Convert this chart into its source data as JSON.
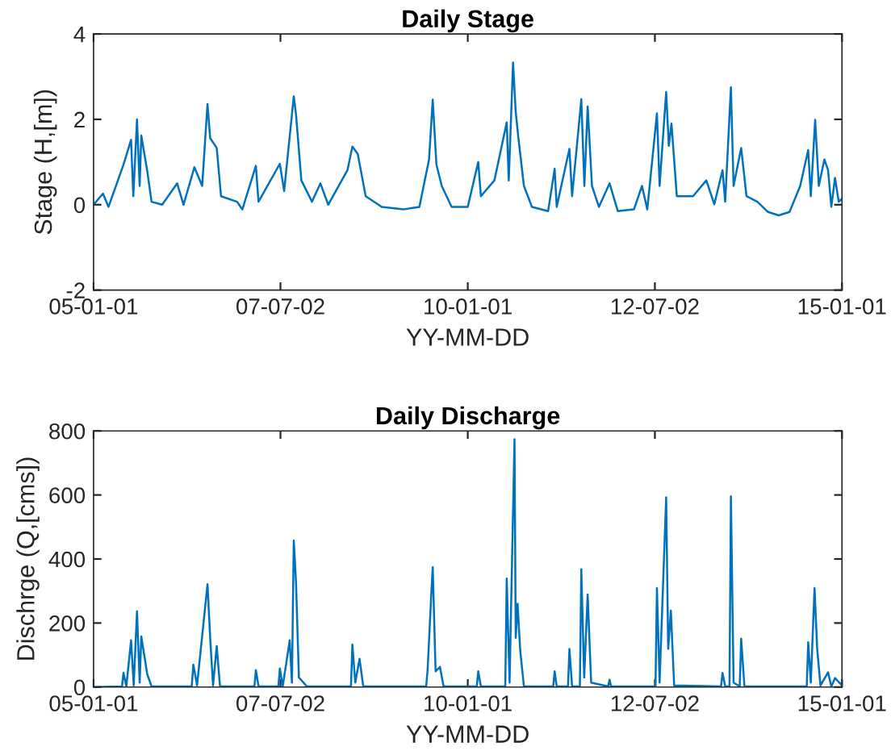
{
  "chart_data": [
    {
      "type": "line",
      "title": "Daily Stage",
      "xlabel": "YY-MM-DD",
      "ylabel": "Stage (H,[m])",
      "xlim": [
        "2005-01-01",
        "2015-01-01"
      ],
      "xticks": [
        {
          "value": "2005-01-01",
          "label": "05-01-01"
        },
        {
          "value": "2007-07-02",
          "label": "07-07-02"
        },
        {
          "value": "2010-01-01",
          "label": "10-01-01"
        },
        {
          "value": "2012-07-02",
          "label": "12-07-02"
        },
        {
          "value": "2015-01-01",
          "label": "15-01-01"
        }
      ],
      "ylim": [
        -2,
        4
      ],
      "yticks": [
        -2,
        0,
        2,
        4
      ],
      "grid": false,
      "legend": false,
      "series": [
        {
          "color": "#0072bd",
          "x": [
            "2005-01-01",
            "2005-02-16",
            "2005-03-15",
            "2005-05-27",
            "2005-07-03",
            "2005-07-14",
            "2005-08-01",
            "2005-08-14",
            "2005-08-22",
            "2005-09-20",
            "2005-10-11",
            "2005-12-02",
            "2006-02-13",
            "2006-03-16",
            "2006-05-08",
            "2006-06-15",
            "2006-07-11",
            "2006-07-24",
            "2006-08-25",
            "2006-09-15",
            "2006-12-02",
            "2006-12-28",
            "2007-03-04",
            "2007-03-17",
            "2007-06-29",
            "2007-07-20",
            "2007-09-05",
            "2007-09-16",
            "2007-10-12",
            "2007-12-03",
            "2008-01-13",
            "2008-02-20",
            "2008-05-24",
            "2008-06-17",
            "2008-07-13",
            "2008-08-21",
            "2008-11-07",
            "2009-02-20",
            "2009-05-10",
            "2009-06-26",
            "2009-07-14",
            "2009-08-01",
            "2009-08-27",
            "2009-10-14",
            "2010-01-01",
            "2010-02-21",
            "2010-03-06",
            "2010-05-11",
            "2010-07-10",
            "2010-07-20",
            "2010-08-10",
            "2010-08-23",
            "2010-09-05",
            "2010-10-02",
            "2010-11-10",
            "2011-01-28",
            "2011-03-01",
            "2011-03-11",
            "2011-05-12",
            "2011-05-25",
            "2011-07-09",
            "2011-07-24",
            "2011-08-09",
            "2011-08-30",
            "2011-10-03",
            "2011-11-24",
            "2012-01-03",
            "2012-03-22",
            "2012-04-30",
            "2012-05-26",
            "2012-07-12",
            "2012-07-25",
            "2012-08-26",
            "2012-09-08",
            "2012-09-21",
            "2012-10-17",
            "2013-01-04",
            "2013-03-10",
            "2013-04-18",
            "2013-05-28",
            "2013-06-10",
            "2013-07-08",
            "2013-07-21",
            "2013-08-27",
            "2013-09-22",
            "2013-11-14",
            "2014-01-05",
            "2014-02-26",
            "2014-04-20",
            "2014-06-11",
            "2014-07-20",
            "2014-08-02",
            "2014-08-23",
            "2014-09-10",
            "2014-10-07",
            "2014-10-25",
            "2014-11-10",
            "2014-11-28",
            "2014-12-16",
            "2015-01-01"
          ],
          "values": [
            0,
            0.26,
            -0.05,
            0.94,
            1.52,
            0.2,
            2.0,
            0.44,
            1.62,
            0.79,
            0.07,
            0,
            0.5,
            0,
            0.88,
            0.44,
            2.36,
            1.56,
            1.33,
            0.2,
            0.07,
            -0.11,
            0.91,
            0.07,
            0.96,
            0.32,
            2.54,
            2.11,
            0.57,
            0.07,
            0.5,
            0,
            0.81,
            1.36,
            1.19,
            0.2,
            -0.05,
            -0.11,
            -0.05,
            1.06,
            2.46,
            0.94,
            0.44,
            -0.05,
            -0.05,
            1.0,
            0.2,
            0.57,
            1.93,
            0.57,
            3.33,
            2.17,
            1.56,
            0.44,
            -0.05,
            -0.15,
            0.84,
            -0.05,
            1.31,
            0.2,
            2.47,
            0.44,
            2.3,
            0.44,
            -0.05,
            0.5,
            -0.15,
            -0.11,
            0.44,
            -0.11,
            2.14,
            0.44,
            2.64,
            1.38,
            1.9,
            0.2,
            0.2,
            0.57,
            0.01,
            0.81,
            0.07,
            2.75,
            0.44,
            1.33,
            0.2,
            0.07,
            -0.17,
            -0.25,
            -0.17,
            0.44,
            1.28,
            0.2,
            1.99,
            0.44,
            1.06,
            0.81,
            -0.05,
            0.63,
            0.07,
            0.14
          ]
        }
      ]
    },
    {
      "type": "line",
      "title": "Daily Discharge",
      "xlabel": "YY-MM-DD",
      "ylabel": "Dischrge (Q,[cms])",
      "xlim": [
        "2005-01-01",
        "2015-01-01"
      ],
      "xticks": [
        {
          "value": "2005-01-01",
          "label": "05-01-01"
        },
        {
          "value": "2007-07-02",
          "label": "07-07-02"
        },
        {
          "value": "2010-01-01",
          "label": "10-01-01"
        },
        {
          "value": "2012-07-02",
          "label": "12-07-02"
        },
        {
          "value": "2015-01-01",
          "label": "15-01-01"
        }
      ],
      "ylim": [
        0,
        800
      ],
      "yticks": [
        0,
        200,
        400,
        600,
        800
      ],
      "grid": false,
      "legend": false,
      "series": [
        {
          "color": "#0072bd",
          "x": [
            "2005-01-01",
            "2005-05-20",
            "2005-05-27",
            "2005-06-10",
            "2005-07-03",
            "2005-07-16",
            "2005-08-01",
            "2005-08-14",
            "2005-08-22",
            "2005-09-20",
            "2005-10-11",
            "2006-04-25",
            "2006-05-03",
            "2006-05-21",
            "2006-07-11",
            "2006-07-24",
            "2006-08-07",
            "2006-08-25",
            "2006-09-10",
            "2007-02-25",
            "2007-03-04",
            "2007-03-17",
            "2007-06-22",
            "2007-06-29",
            "2007-07-13",
            "2007-08-16",
            "2007-08-27",
            "2007-09-05",
            "2007-09-16",
            "2007-09-30",
            "2007-11-08",
            "2008-06-10",
            "2008-06-17",
            "2008-07-01",
            "2008-07-22",
            "2008-08-09",
            "2009-06-12",
            "2009-06-19",
            "2009-07-07",
            "2009-07-14",
            "2009-07-28",
            "2009-08-18",
            "2009-09-05",
            "2010-02-14",
            "2010-02-21",
            "2010-03-06",
            "2010-07-03",
            "2010-07-10",
            "2010-07-24",
            "2010-08-17",
            "2010-08-23",
            "2010-09-01",
            "2010-09-14",
            "2010-10-02",
            "2011-02-22",
            "2011-03-01",
            "2011-03-11",
            "2011-05-05",
            "2011-05-12",
            "2011-05-25",
            "2011-07-02",
            "2011-07-09",
            "2011-07-23",
            "2011-08-09",
            "2011-08-26",
            "2011-11-17",
            "2011-11-24",
            "2011-12-01",
            "2012-07-05",
            "2012-07-12",
            "2012-07-25",
            "2012-08-26",
            "2012-09-05",
            "2012-09-18",
            "2012-10-04",
            "2013-05-21",
            "2013-05-28",
            "2013-06-10",
            "2013-07-01",
            "2013-07-08",
            "2013-07-21",
            "2013-08-20",
            "2013-08-27",
            "2013-09-12",
            "2014-07-13",
            "2014-07-20",
            "2014-08-02",
            "2014-08-20",
            "2014-09-02",
            "2014-09-18",
            "2014-10-25",
            "2014-11-10",
            "2014-11-28",
            "2015-01-01"
          ],
          "values": [
            0,
            2,
            45,
            2,
            146,
            5,
            237,
            14,
            158,
            40,
            2,
            2,
            70,
            5,
            321,
            154,
            5,
            128,
            2,
            2,
            53,
            2,
            2,
            58,
            2,
            146,
            14,
            458,
            325,
            30,
            2,
            2,
            133,
            14,
            88,
            2,
            2,
            53,
            291,
            374,
            49,
            63,
            2,
            2,
            49,
            2,
            2,
            339,
            14,
            774,
            154,
            260,
            114,
            2,
            2,
            49,
            2,
            2,
            119,
            2,
            2,
            368,
            30,
            289,
            14,
            2,
            23,
            2,
            2,
            309,
            14,
            593,
            119,
            239,
            5,
            2,
            44,
            2,
            2,
            596,
            14,
            2,
            151,
            2,
            2,
            140,
            14,
            309,
            119,
            5,
            46,
            2,
            28,
            5
          ]
        }
      ]
    }
  ]
}
